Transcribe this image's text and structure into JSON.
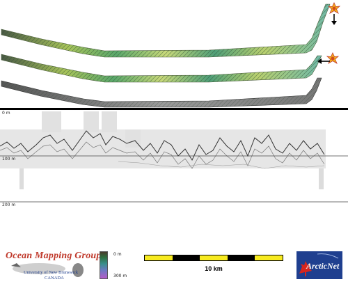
{
  "profile": {
    "depth_labels": [
      "0 m",
      "100 m",
      "200 m"
    ]
  },
  "legend": {
    "organization": "Ocean Mapping Group",
    "university": "University of New Brunswick",
    "country": "CANADA",
    "colorbar_top": "0 m",
    "colorbar_bottom": "300 m",
    "scale_label": "10 km",
    "partner_logo": "ArcticNet"
  },
  "icons": {
    "sun_marker": "sun-burst-icon",
    "direction_arrow": "down-arrow-icon"
  }
}
